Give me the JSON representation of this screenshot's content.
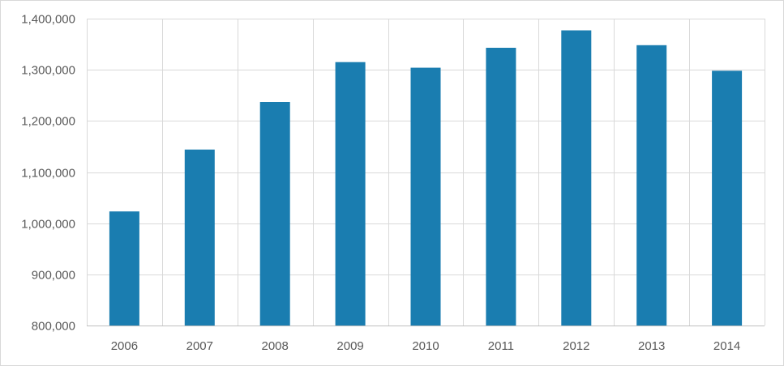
{
  "chart_data": {
    "type": "bar",
    "title": "",
    "xlabel": "",
    "ylabel": "",
    "categories": [
      "2006",
      "2007",
      "2008",
      "2009",
      "2010",
      "2011",
      "2012",
      "2013",
      "2014"
    ],
    "series": [
      {
        "values": [
          1023000,
          1144000,
          1237000,
          1315000,
          1304000,
          1343000,
          1377000,
          1348000,
          1298000
        ]
      }
    ],
    "ylim": [
      800000,
      1400000
    ],
    "yticks": [
      800000,
      900000,
      1000000,
      1100000,
      1200000,
      1300000,
      1400000
    ],
    "ytick_labels": [
      "800,000",
      "900,000",
      "1,000,000",
      "1,100,000",
      "1,200,000",
      "1,300,000",
      "1,400,000"
    ],
    "grid": true,
    "legend": "none",
    "colors": {
      "bar": "#1a7db0",
      "grid": "#d9d9d9",
      "axis": "#bfbfbf",
      "text": "#595959"
    }
  }
}
